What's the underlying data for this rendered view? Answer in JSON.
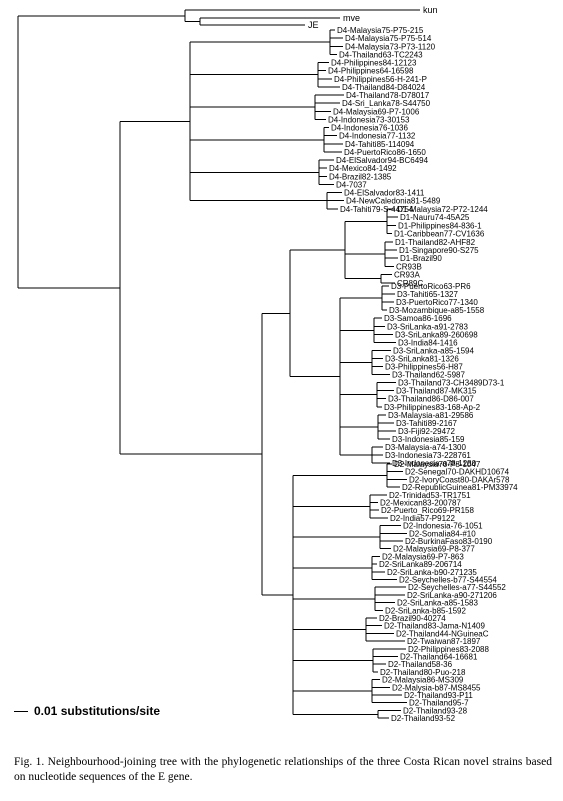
{
  "figure": {
    "scale_label": "0.01 substitutions/site",
    "caption": "Fig. 1. Neighbourhood-joining tree with the phylogenetic relationships of the three Costa Rican novel strains based on nucleotide sequences of the E gene."
  },
  "tree": {
    "outgroups": [
      "kun",
      "mve",
      "JE"
    ],
    "clades": [
      {
        "name": "D4",
        "taxa": [
          "D4-Malaysia75-P75-215",
          "D4-Malaysia75-P75-514",
          "D4-Malaysia73-P73-1120",
          "D4-Thailand63-TC2243",
          "D4-Philippines84-12123",
          "D4-Philippines64-16598",
          "D4-Philippines56-H-241-P",
          "D4-Thailand84-D84024",
          "D4-Thailand78-D78017",
          "D4-Sri_Lanka78-S44750",
          "D4-Malaysia69-P7-1006",
          "D4-Indonesia73-30153",
          "D4-Indonesia76-1036",
          "D4-Indonesia77-1132",
          "D4-Tahiti85-114094",
          "D4-PuertoRico86-1650",
          "D4-ElSalvador94-BC6494",
          "D4-Mexico84-1492",
          "D4-Brazil82-1385",
          "D4-7037",
          "D4-ElSalvador83-1411",
          "D4-NewCaledonia81-5489",
          "D4-Tahiti79-S-44754"
        ]
      },
      {
        "name": "D1",
        "taxa": [
          "D1-Malaysia72-P72-1244",
          "D1-Nauru74-45A25",
          "D1-Philippines84-836-1",
          "D1-Caribbean77-CV1636",
          "D1-Thailand82-AHF82",
          "D1-Singapore90-S275",
          "D1-Brazil90",
          "CR93B",
          "CR93A",
          "CR89C"
        ]
      },
      {
        "name": "D3",
        "taxa": [
          "D3-PuertoRico63-PR6",
          "D3-Tahiti65-1327",
          "D3-PuertoRico77-1340",
          "D3-Mozambique-a85-1558",
          "D3-Samoa86-1696",
          "D3-SriLanka-a91-2783",
          "D3-SriLanka89-260698",
          "D3-India84-1416",
          "D3-SriLanka-a85-1594",
          "D3-SriLanka81-1326",
          "D3-Philippines56-H87",
          "D3-Thailand62-5987",
          "D3-Thailand73-CH3489D73-1",
          "D3-Thailand87-MK315",
          "D3-Thailand86-D86-007",
          "D3-Philippines83-168-Ap-2",
          "D3-Malaysia-a81-29586",
          "D3-Tahiti89-2167",
          "D3-Fiji92-29472",
          "D3-Indonesia85-159",
          "D3-Malaysia-a74-1300",
          "D3-Indonesia73-228761",
          "D3-Indonesia-a78-1280"
        ]
      },
      {
        "name": "D2",
        "taxa": [
          "D2-Malaysia70-P8-1047",
          "D2-Senegal70-DAKHD10674",
          "D2-IvoryCoast80-DAKAr578",
          "D2-RepublicGuinea81-PM33974",
          "D2-Trinidad53-TR1751",
          "D2-Mexican83-200787",
          "D2-Puerto_Rico69-PR158",
          "D2-India57-P9122",
          "D2-Indonesia-76-1051",
          "D2-Somalia84-#10",
          "D2-BurkinaFaso83-0190",
          "D2-Malaysia69-P8-377",
          "D2-Malaysia69-P7-863",
          "D2-SriLanka89-206714",
          "D2-SriLanka-b90-271235",
          "D2-Seychelles-b77-S44554",
          "D2-Seychelles-a77-S44552",
          "D2-SriLanka-a90-271206",
          "D2-SriLanka-a85-1583",
          "D2-SriLanka-b85-1592",
          "D2-Brazil90-40274",
          "D2-Thailand83-Jama-N1409",
          "D2-Thailand44-NGuineaC",
          "D2-Twaiwan87-1897",
          "D2-Philippines83-2088",
          "D2-Thailand64-16681",
          "D2-Thailand58-36",
          "D2-Thailand80-Puo-218",
          "D2-Malaysia86-MS309",
          "D2-Malysia-b87-MS8455",
          "D2-Thailand93-P11",
          "D2-Thailand95-7",
          "D2-Thailand93-28",
          "D2-Thailand93-52"
        ]
      }
    ]
  }
}
